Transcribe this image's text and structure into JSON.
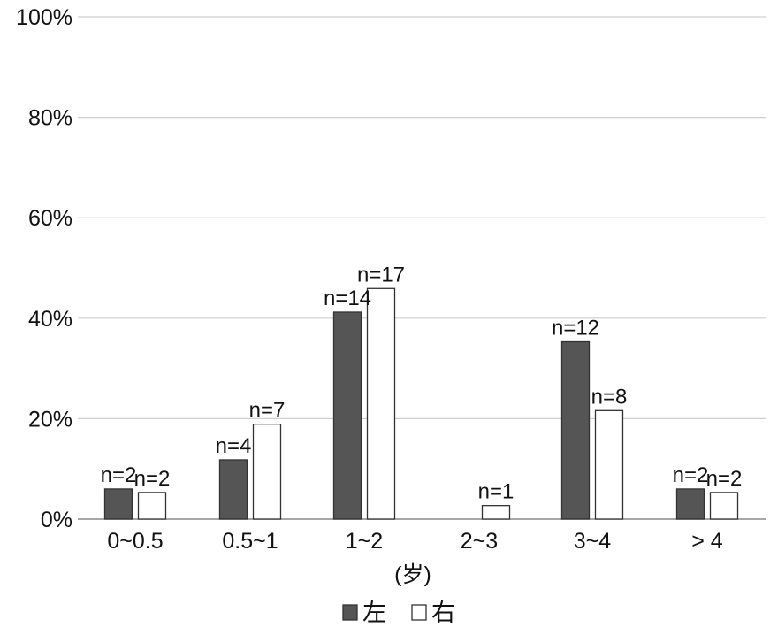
{
  "chart_data": {
    "type": "bar",
    "title": "",
    "xlabel": "(岁)",
    "ylabel": "",
    "ylim": [
      0,
      100
    ],
    "yticks": [
      "0%",
      "20%",
      "40%",
      "60%",
      "80%",
      "100%"
    ],
    "grid": true,
    "legend_position": "bottom",
    "categories": [
      "0~0.5",
      "0.5~1",
      "1~2",
      "2~3",
      "3~4",
      "> 4"
    ],
    "series": [
      {
        "name": "左",
        "fill": "#555555",
        "values": [
          6,
          11.8,
          41.2,
          null,
          35.3,
          6
        ],
        "labels": [
          "n=2",
          "n=4",
          "n=14",
          "",
          "n=12",
          "n=2"
        ]
      },
      {
        "name": "右",
        "fill": "#ffffff",
        "values": [
          5.3,
          18.9,
          45.9,
          2.7,
          21.6,
          5.3
        ],
        "labels": [
          "n=2",
          "n=7",
          "n=17",
          "n=1",
          "n=8",
          "n=2"
        ]
      }
    ]
  }
}
